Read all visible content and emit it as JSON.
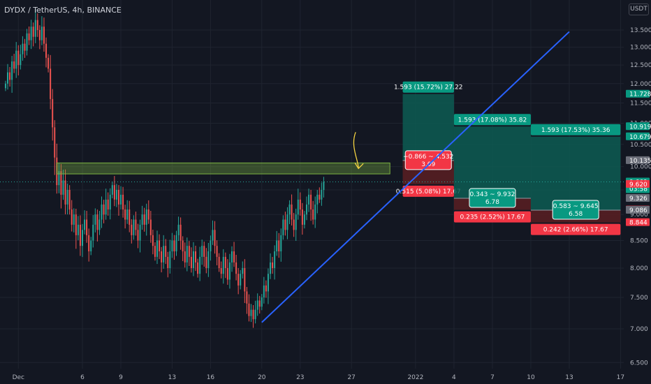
{
  "header": {
    "symbol_line": "DYDX / TetherUS, 4h, BINANCE",
    "currency": "USDT"
  },
  "colors": {
    "background": "#131722",
    "grid": "#1f2430",
    "up": "#26a69a",
    "down": "#ef5350",
    "trendline": "#2962ff",
    "zone_fill": "#7cb342",
    "target_zone": "#0d5c52",
    "stop_zone": "#5a1f22",
    "annotation": "#f5d442"
  },
  "chart_data": {
    "type": "candlestick",
    "y_axis": {
      "scale": "log",
      "range": [
        6.3,
        14.0
      ],
      "tick_labels": [
        "13.500",
        "13.000",
        "12.500",
        "12.000",
        "11.500",
        "11.000",
        "10.500",
        "10.000",
        "9.500",
        "9.000",
        "8.500",
        "8.000",
        "7.500",
        "7.000",
        "6.500"
      ],
      "grid": true
    },
    "x_axis": {
      "range": [
        "2021-11-30",
        "2022-01-18"
      ],
      "tick_labels": [
        {
          "label": "Dec",
          "date": "2021-12-01"
        },
        {
          "label": "6",
          "date": "2021-12-06"
        },
        {
          "label": "9",
          "date": "2021-12-09"
        },
        {
          "label": "13",
          "date": "2021-12-13"
        },
        {
          "label": "16",
          "date": "2021-12-16"
        },
        {
          "label": "20",
          "date": "2021-12-20"
        },
        {
          "label": "23",
          "date": "2021-12-23"
        },
        {
          "label": "27",
          "date": "2021-12-27"
        },
        {
          "label": "2022",
          "date": "2022-01-01"
        },
        {
          "label": "4",
          "date": "2022-01-04"
        },
        {
          "label": "7",
          "date": "2022-01-07"
        },
        {
          "label": "10",
          "date": "2022-01-10"
        },
        {
          "label": "13",
          "date": "2022-01-13"
        },
        {
          "label": "17",
          "date": "2022-01-17"
        }
      ]
    },
    "candles": {
      "interval": "4h",
      "first_bar": "2021-11-30 00:00",
      "note_shape": "rally to ~14 in early Dec, drop to ~9.7 on Dec 4, range 8-9.8, low ~7.1 on Dec 20, rise to ~9.7 by Dec 27",
      "closes": [
        12.0,
        12.3,
        12.1,
        12.6,
        12.4,
        12.9,
        12.5,
        12.8,
        13.1,
        12.9,
        13.4,
        13.2,
        13.6,
        13.3,
        13.8,
        13.5,
        13.2,
        13.6,
        13.1,
        12.7,
        12.4,
        11.6,
        10.9,
        10.2,
        9.6,
        9.9,
        9.4,
        9.7,
        9.2,
        9.5,
        9.1,
        8.8,
        9.0,
        8.6,
        8.8,
        8.4,
        8.7,
        8.9,
        8.6,
        8.3,
        8.5,
        8.8,
        9.0,
        8.7,
        8.9,
        9.2,
        9.0,
        9.3,
        9.1,
        9.4,
        9.6,
        9.3,
        9.5,
        9.2,
        9.4,
        9.1,
        8.9,
        9.1,
        8.8,
        8.6,
        8.9,
        8.7,
        8.5,
        8.8,
        9.0,
        8.8,
        9.1,
        8.9,
        8.6,
        8.4,
        8.2,
        8.5,
        8.3,
        8.1,
        8.4,
        8.2,
        8.0,
        8.3,
        8.5,
        8.3,
        8.6,
        8.8,
        8.5,
        8.3,
        8.1,
        8.4,
        8.2,
        8.0,
        8.3,
        8.1,
        7.9,
        8.2,
        8.4,
        8.2,
        8.0,
        8.3,
        8.5,
        8.7,
        8.4,
        8.2,
        8.0,
        7.9,
        8.2,
        8.0,
        7.8,
        8.1,
        8.3,
        8.1,
        7.9,
        7.7,
        7.9,
        8.0,
        7.6,
        7.4,
        7.2,
        7.3,
        7.15,
        7.3,
        7.45,
        7.35,
        7.5,
        7.7,
        7.6,
        7.9,
        8.1,
        8.0,
        8.3,
        8.5,
        8.3,
        8.6,
        8.9,
        8.7,
        9.0,
        9.2,
        8.9,
        8.7,
        9.0,
        9.3,
        9.1,
        8.8,
        9.0,
        9.2,
        9.4,
        9.1,
        8.9,
        9.2,
        9.4,
        9.3,
        9.5,
        9.669
      ],
      "last_close": 9.669,
      "countdown": "03:58"
    },
    "drawings": {
      "trendline": {
        "from": {
          "date": "2021-12-20",
          "price": 7.1
        },
        "to": {
          "date": "2022-01-13",
          "price": 13.45
        }
      },
      "demand_zone": {
        "from": "2021-12-04",
        "to": "2021-12-30",
        "top": 10.08,
        "bottom": 9.84
      },
      "annotation": "hand-drawn arrow pointing down at 27 Dec"
    },
    "positions": [
      {
        "from": "2021-12-31",
        "to": "2022-01-04",
        "entry": 10.135,
        "target": 11.728,
        "stop": 9.62,
        "target_label": "1.593 (15.72%) 27.22",
        "stop_label": "0.515 (5.08%) 17.67",
        "center_label_top": "−0.866 ~ 4.532",
        "center_label_bottom": "3.09",
        "center_style": "loss"
      },
      {
        "from": "2022-01-04",
        "to": "2022-01-10",
        "entry": 9.326,
        "target": 10.919,
        "stop": 9.091,
        "target_label": "1.593 (17.08%) 35.82",
        "stop_label": "0.235 (2.52%) 17.67",
        "center_label_top": "0.343 ~ 9.932",
        "center_label_bottom": "6.78",
        "center_style": "profit"
      },
      {
        "from": "2022-01-10",
        "to": "2022-01-17",
        "entry": 9.086,
        "target": 10.679,
        "stop": 8.844,
        "target_label": "1.593 (17.53%) 35.36",
        "stop_label": "0.242 (2.66%) 17.67",
        "center_label_top": "0.583 ~ 9.645",
        "center_label_bottom": "6.58",
        "center_style": "profit"
      }
    ],
    "price_tags": [
      {
        "value": "11.728",
        "price": 11.728,
        "color": "#089981"
      },
      {
        "value": "10.919",
        "price": 10.919,
        "color": "#089981"
      },
      {
        "value": "10.679",
        "price": 10.679,
        "color": "#089981"
      },
      {
        "value": "10.135",
        "price": 10.135,
        "color": "#6a6d78"
      },
      {
        "value": "9.669",
        "price": 9.669,
        "color": "#089981",
        "sub": "03:58"
      },
      {
        "value": "9.620",
        "price": 9.62,
        "color": "#f23645"
      },
      {
        "value": "9.326",
        "price": 9.326,
        "color": "#6a6d78"
      },
      {
        "value": "9.091",
        "price": 9.091,
        "color": "#f23645"
      },
      {
        "value": "9.086",
        "price": 9.086,
        "color": "#6a6d78"
      },
      {
        "value": "8.844",
        "price": 8.844,
        "color": "#f23645"
      }
    ]
  }
}
